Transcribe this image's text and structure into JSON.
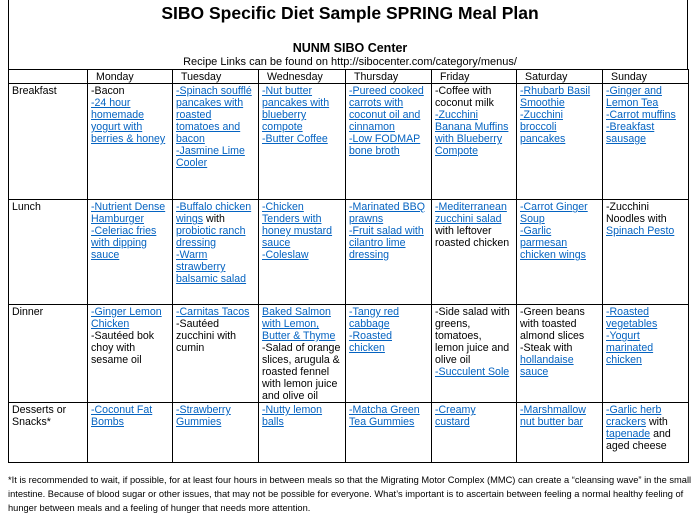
{
  "title": "SIBO Specific Diet Sample SPRING Meal Plan",
  "subtitle": "NUNM SIBO Center",
  "recipe_line": "Recipe Links can be found on http://sibocenter.com/category/menus/",
  "days": [
    "Monday",
    "Tuesday",
    "Wednesday",
    "Thursday",
    "Friday",
    "Saturday",
    "Sunday"
  ],
  "rows": [
    {
      "label": "Breakfast",
      "cells": [
        [
          [
            {
              "t": "-Bacon",
              "l": false
            }
          ],
          [
            {
              "t": "-24 hour homemade yogurt with berries & honey",
              "l": true
            }
          ]
        ],
        [
          [
            {
              "t": "-Spinach soufflé pancakes with roasted tomatoes and bacon",
              "l": true
            }
          ],
          [
            {
              "t": "-Jasmine Lime Cooler",
              "l": true
            }
          ]
        ],
        [
          [
            {
              "t": "-Nut butter pancakes with blueberry compote",
              "l": true
            }
          ],
          [
            {
              "t": "-Butter Coffee",
              "l": true
            }
          ]
        ],
        [
          [
            {
              "t": "-Pureed cooked carrots with coconut oil and cinnamon",
              "l": true
            }
          ],
          [
            {
              "t": "-Low FODMAP bone broth",
              "l": true
            }
          ]
        ],
        [
          [
            {
              "t": "-Coffee with coconut milk",
              "l": false
            }
          ],
          [
            {
              "t": "-Zucchini Banana Muffins with Blueberry Compote",
              "l": true
            }
          ]
        ],
        [
          [
            {
              "t": "-Rhubarb Basil Smoothie",
              "l": true
            }
          ],
          [
            {
              "t": "-Zucchini broccoli pancakes",
              "l": true
            }
          ]
        ],
        [
          [
            {
              "t": "-Ginger and Lemon Tea",
              "l": true
            }
          ],
          [
            {
              "t": "-Carrot muffins",
              "l": true
            }
          ],
          [
            {
              "t": "-Breakfast sausage",
              "l": true
            }
          ]
        ]
      ]
    },
    {
      "label": "Lunch",
      "cells": [
        [
          [
            {
              "t": "-Nutrient Dense Hamburger",
              "l": true
            }
          ],
          [
            {
              "t": "-Celeriac fries with dipping sauce",
              "l": true
            }
          ]
        ],
        [
          [
            {
              "t": "-Buffalo chicken wings",
              "l": true
            },
            {
              "t": " with ",
              "l": false
            },
            {
              "t": "probiotic ranch dressing",
              "l": true
            }
          ],
          [
            {
              "t": "-Warm strawberry balsamic salad",
              "l": true
            }
          ]
        ],
        [
          [
            {
              "t": "-Chicken Tenders with honey mustard sauce",
              "l": true
            }
          ],
          [
            {
              "t": "-Coleslaw",
              "l": true
            }
          ]
        ],
        [
          [
            {
              "t": "-Marinated BBQ prawns",
              "l": true
            }
          ],
          [
            {
              "t": "-Fruit salad with cilantro lime dressing",
              "l": true
            }
          ]
        ],
        [
          [
            {
              "t": "-Mediterranean zucchini salad",
              "l": true
            },
            {
              "t": " with leftover roasted chicken",
              "l": false
            }
          ]
        ],
        [
          [
            {
              "t": "-Carrot Ginger Soup",
              "l": true
            }
          ],
          [
            {
              "t": "-Garlic parmesan chicken wings",
              "l": true
            }
          ]
        ],
        [
          [
            {
              "t": "-Zucchini Noodles with ",
              "l": false
            },
            {
              "t": "Spinach Pesto",
              "l": true
            }
          ]
        ]
      ]
    },
    {
      "label": "Dinner",
      "cells": [
        [
          [
            {
              "t": "-Ginger Lemon Chicken",
              "l": true
            }
          ],
          [
            {
              "t": "-Sautéed bok choy with sesame oil",
              "l": false
            }
          ]
        ],
        [
          [
            {
              "t": "-Carnitas Tacos",
              "l": true
            }
          ],
          [
            {
              "t": "-Sautéed zucchini with cumin",
              "l": false
            }
          ]
        ],
        [
          [
            {
              "t": "Baked Salmon with Lemon, Butter & Thyme",
              "l": true
            }
          ],
          [
            {
              "t": "-Salad of orange slices, arugula & roasted fennel with lemon juice and olive oil",
              "l": false
            }
          ]
        ],
        [
          [
            {
              "t": "-Tangy red cabbage",
              "l": true
            }
          ],
          [
            {
              "t": "-Roasted chicken",
              "l": true
            }
          ]
        ],
        [
          [
            {
              "t": "-Side salad with greens, tomatoes, lemon juice and olive oil",
              "l": false
            }
          ],
          [
            {
              "t": "-Succulent Sole",
              "l": true
            }
          ]
        ],
        [
          [
            {
              "t": "-Green beans with toasted almond slices",
              "l": false
            }
          ],
          [
            {
              "t": "-Steak with ",
              "l": false
            },
            {
              "t": "hollandaise sauce",
              "l": true
            }
          ]
        ],
        [
          [
            {
              "t": "-Roasted vegetables",
              "l": true
            }
          ],
          [
            {
              "t": "-Yogurt marinated chicken",
              "l": true
            }
          ]
        ]
      ]
    },
    {
      "label": "Desserts or Snacks*",
      "cells": [
        [
          [
            {
              "t": "-Coconut Fat Bombs",
              "l": true
            }
          ]
        ],
        [
          [
            {
              "t": "-Strawberry Gummies",
              "l": true
            }
          ]
        ],
        [
          [
            {
              "t": "-Nutty lemon balls",
              "l": true
            }
          ]
        ],
        [
          [
            {
              "t": "-Matcha Green Tea Gummies",
              "l": true
            }
          ]
        ],
        [
          [
            {
              "t": "-Creamy custard",
              "l": true
            }
          ]
        ],
        [
          [
            {
              "t": "-Marshmallow nut butter bar",
              "l": true
            }
          ]
        ],
        [
          [
            {
              "t": "-Garlic herb crackers",
              "l": true
            },
            {
              "t": " with ",
              "l": false
            },
            {
              "t": "tapenade",
              "l": true
            },
            {
              "t": " and aged cheese",
              "l": false
            }
          ]
        ]
      ]
    }
  ],
  "footnote": "*It is recommended to wait, if possible, for at least four hours in between meals so that the Migrating Motor Complex (MMC) can create a “cleansing wave” in the small intestine.  Because of blood sugar or other issues, that may not be possible for everyone.  What’s important is to ascertain between feeling a normal healthy feeling of hunger between meals and a feeling of hunger that needs more attention."
}
